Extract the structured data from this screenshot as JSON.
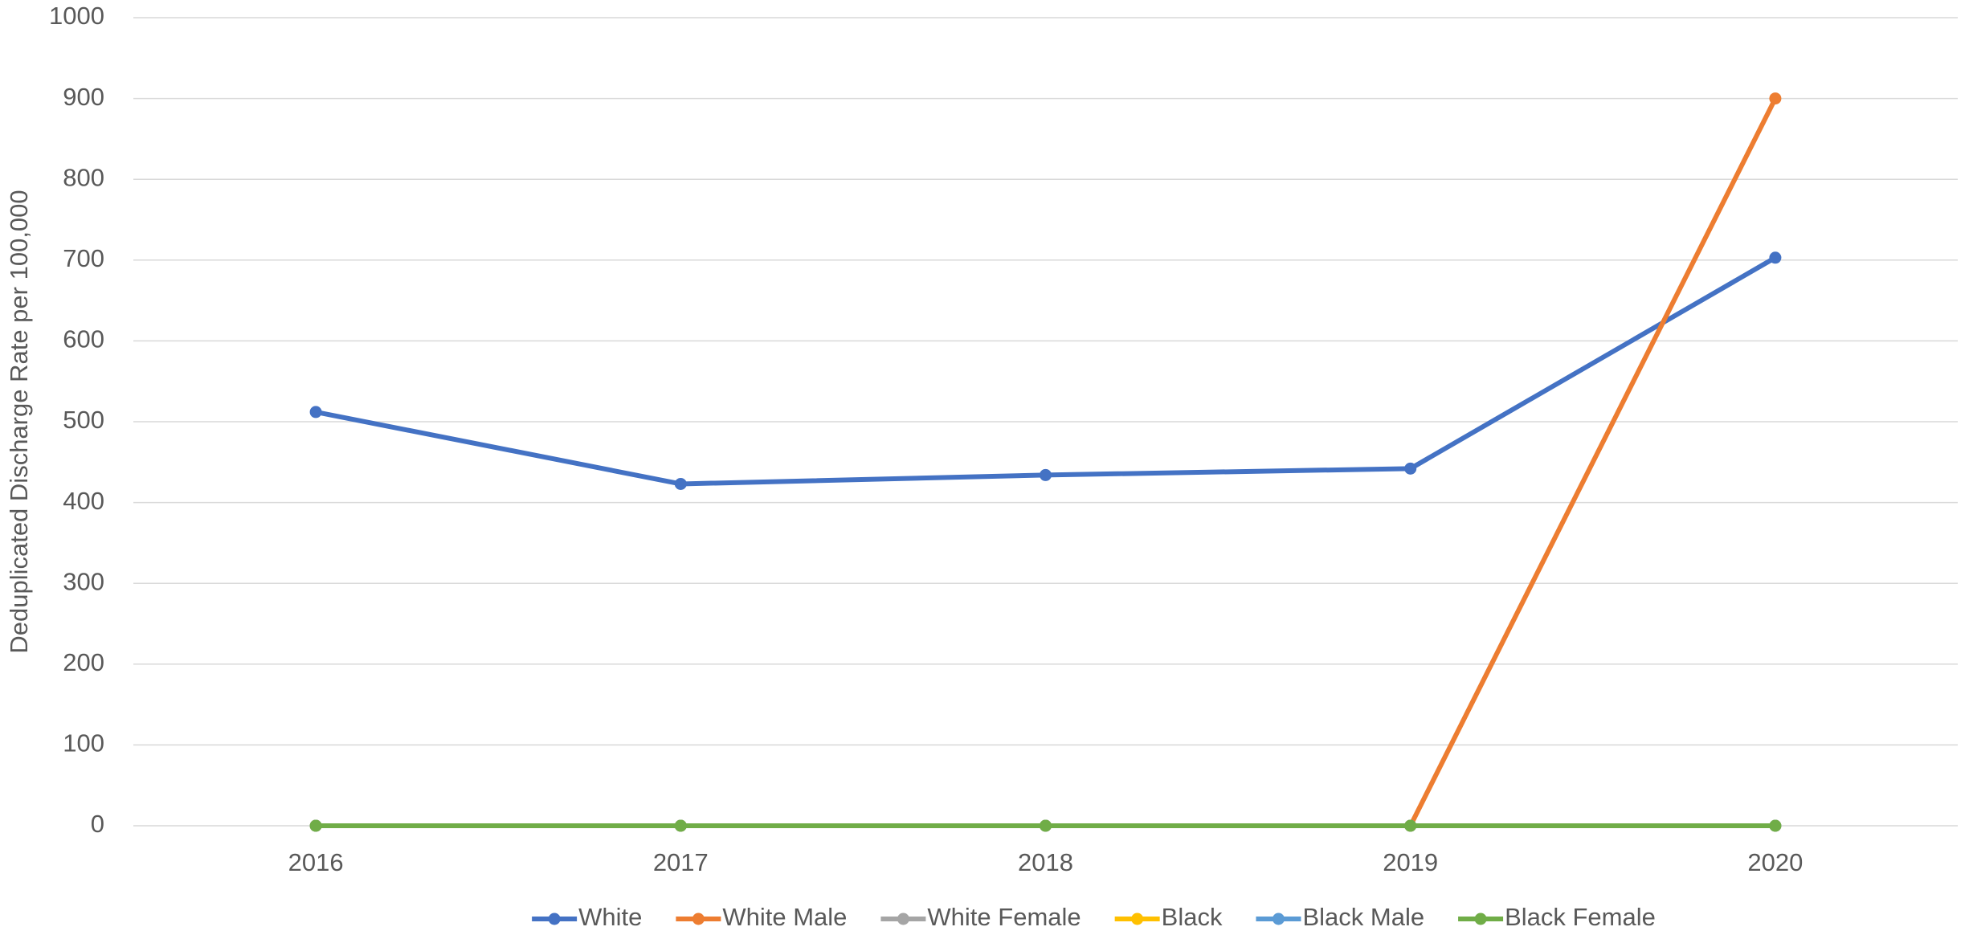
{
  "chart_data": {
    "type": "line",
    "y_label": "Deduplicated Discharge Rate per 100,000",
    "categories": [
      "2016",
      "2017",
      "2018",
      "2019",
      "2020"
    ],
    "series": [
      {
        "name": "White",
        "color": "#4472c4",
        "values": [
          512,
          423,
          434,
          442,
          703
        ]
      },
      {
        "name": "White Male",
        "color": "#ed7d31",
        "values": [
          0,
          0,
          0,
          0,
          900
        ]
      },
      {
        "name": "White Female",
        "color": "#a5a5a5",
        "values": [
          0,
          0,
          0,
          0,
          0
        ]
      },
      {
        "name": "Black",
        "color": "#ffc000",
        "values": [
          0,
          0,
          0,
          0,
          0
        ]
      },
      {
        "name": "Black Male",
        "color": "#5b9bd5",
        "values": [
          0,
          0,
          0,
          0,
          0
        ]
      },
      {
        "name": "Black Female",
        "color": "#70ad47",
        "values": [
          0,
          0,
          0,
          0,
          0
        ]
      }
    ],
    "ylim": [
      0,
      1000
    ],
    "yticks": [
      0,
      100,
      200,
      300,
      400,
      500,
      600,
      700,
      800,
      900,
      1000
    ],
    "grid": true,
    "legend": "bottom"
  }
}
